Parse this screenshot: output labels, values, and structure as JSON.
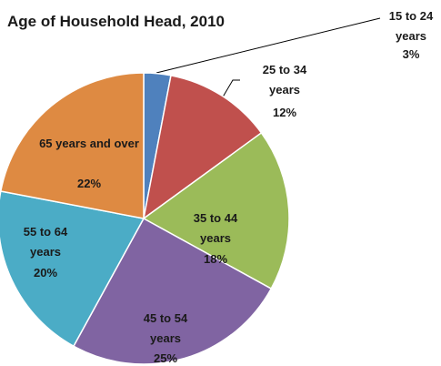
{
  "chart_data": {
    "type": "pie",
    "title": "Age of Household Head, 2010",
    "categories": [
      "15 to 24 years",
      "25 to 34 years",
      "35 to 44 years",
      "45 to 54 years",
      "55 to 64 years",
      "65 years and over"
    ],
    "values": [
      3,
      12,
      18,
      25,
      20,
      22
    ],
    "value_labels": [
      "3%",
      "12%",
      "18%",
      "25%",
      "20%",
      "22%"
    ],
    "colors": [
      "#4F81BD",
      "#C0504D",
      "#9BBB59",
      "#8064A2",
      "#4BACC6",
      "#DE8A42"
    ]
  }
}
